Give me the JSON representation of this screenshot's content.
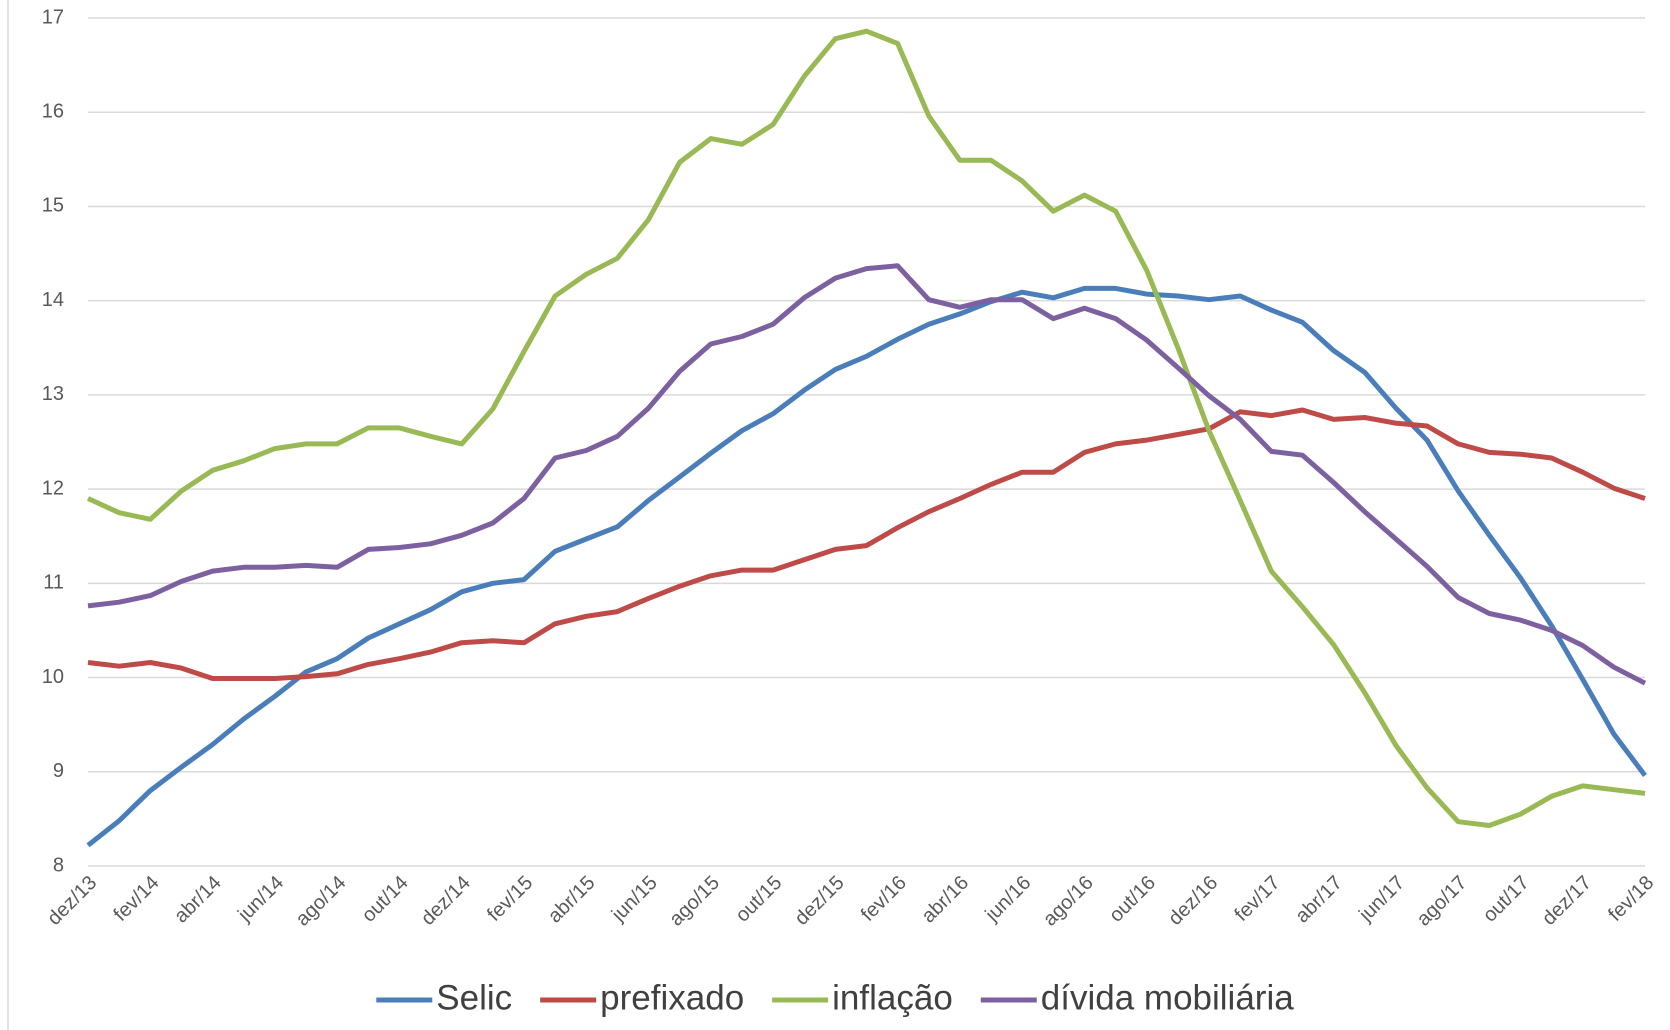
{
  "chart_data": {
    "type": "line",
    "categories": [
      "dez/13",
      null,
      "fev/14",
      null,
      "abr/14",
      null,
      "jun/14",
      null,
      "ago/14",
      null,
      "out/14",
      null,
      "dez/14",
      null,
      "fev/15",
      null,
      "abr/15",
      null,
      "jun/15",
      null,
      "ago/15",
      null,
      "out/15",
      null,
      "dez/15",
      null,
      "fev/16",
      null,
      "abr/16",
      null,
      "jun/16",
      null,
      "ago/16",
      null,
      "out/16",
      null,
      "dez/16",
      null,
      "fev/17",
      null,
      "abr/17",
      null,
      "jun/17",
      null,
      "ago/17",
      null,
      "out/17",
      null,
      "dez/17",
      null,
      "fev/18"
    ],
    "series": [
      {
        "name": "Selic",
        "color": "#4a7ebb",
        "values": [
          8.22,
          8.48,
          8.8,
          9.05,
          9.29,
          9.56,
          9.8,
          10.06,
          10.2,
          10.42,
          10.57,
          10.72,
          10.91,
          11.0,
          11.04,
          11.34,
          11.47,
          11.6,
          11.88,
          12.13,
          12.38,
          12.62,
          12.8,
          13.05,
          13.27,
          13.41,
          13.59,
          13.75,
          13.86,
          13.99,
          14.09,
          14.03,
          14.13,
          14.13,
          14.07,
          14.05,
          14.01,
          14.05,
          13.9,
          13.77,
          13.47,
          13.24,
          12.86,
          12.52,
          11.98,
          11.51,
          11.06,
          10.55,
          9.98,
          9.4,
          8.96
        ]
      },
      {
        "name": "prefixado",
        "color": "#be4b48",
        "values": [
          10.16,
          10.12,
          10.16,
          10.1,
          9.99,
          9.99,
          9.99,
          10.01,
          10.04,
          10.14,
          10.2,
          10.27,
          10.37,
          10.39,
          10.37,
          10.57,
          10.65,
          10.7,
          10.84,
          10.97,
          11.08,
          11.14,
          11.14,
          11.25,
          11.36,
          11.4,
          11.59,
          11.76,
          11.9,
          12.05,
          12.18,
          12.18,
          12.39,
          12.48,
          12.52,
          12.58,
          12.64,
          12.82,
          12.78,
          12.84,
          12.74,
          12.76,
          12.7,
          12.67,
          12.48,
          12.39,
          12.37,
          12.33,
          12.18,
          12.01,
          11.9
        ]
      },
      {
        "name": "inflação",
        "color": "#98b954",
        "values": [
          11.9,
          11.75,
          11.68,
          11.98,
          12.2,
          12.3,
          12.43,
          12.48,
          12.48,
          12.65,
          12.65,
          12.56,
          12.48,
          12.85,
          13.46,
          14.05,
          14.28,
          14.45,
          14.86,
          15.47,
          15.72,
          15.66,
          15.87,
          16.38,
          16.78,
          16.86,
          16.73,
          15.96,
          15.49,
          15.49,
          15.27,
          14.95,
          15.12,
          14.95,
          14.32,
          13.5,
          12.62,
          11.88,
          11.13,
          10.75,
          10.35,
          9.84,
          9.28,
          8.83,
          8.47,
          8.43,
          8.55,
          8.74,
          8.85,
          8.81,
          8.77
        ]
      },
      {
        "name": "dívida mobiliária",
        "color": "#7d60a0",
        "values": [
          10.76,
          10.8,
          10.87,
          11.02,
          11.13,
          11.17,
          11.17,
          11.19,
          11.17,
          11.36,
          11.38,
          11.42,
          11.51,
          11.64,
          11.9,
          12.33,
          12.41,
          12.56,
          12.86,
          13.25,
          13.54,
          13.62,
          13.75,
          14.03,
          14.24,
          14.34,
          14.37,
          14.01,
          13.93,
          14.01,
          14.01,
          13.81,
          13.92,
          13.81,
          13.58,
          13.29,
          12.99,
          12.74,
          12.4,
          12.36,
          12.07,
          11.76,
          11.47,
          11.18,
          10.85,
          10.68,
          10.61,
          10.5,
          10.34,
          10.11,
          9.94
        ]
      }
    ],
    "ylim": [
      8,
      17
    ],
    "yticks": [
      8,
      9,
      10,
      11,
      12,
      13,
      14,
      15,
      16,
      17
    ],
    "grid": true,
    "legend": "bottom"
  }
}
